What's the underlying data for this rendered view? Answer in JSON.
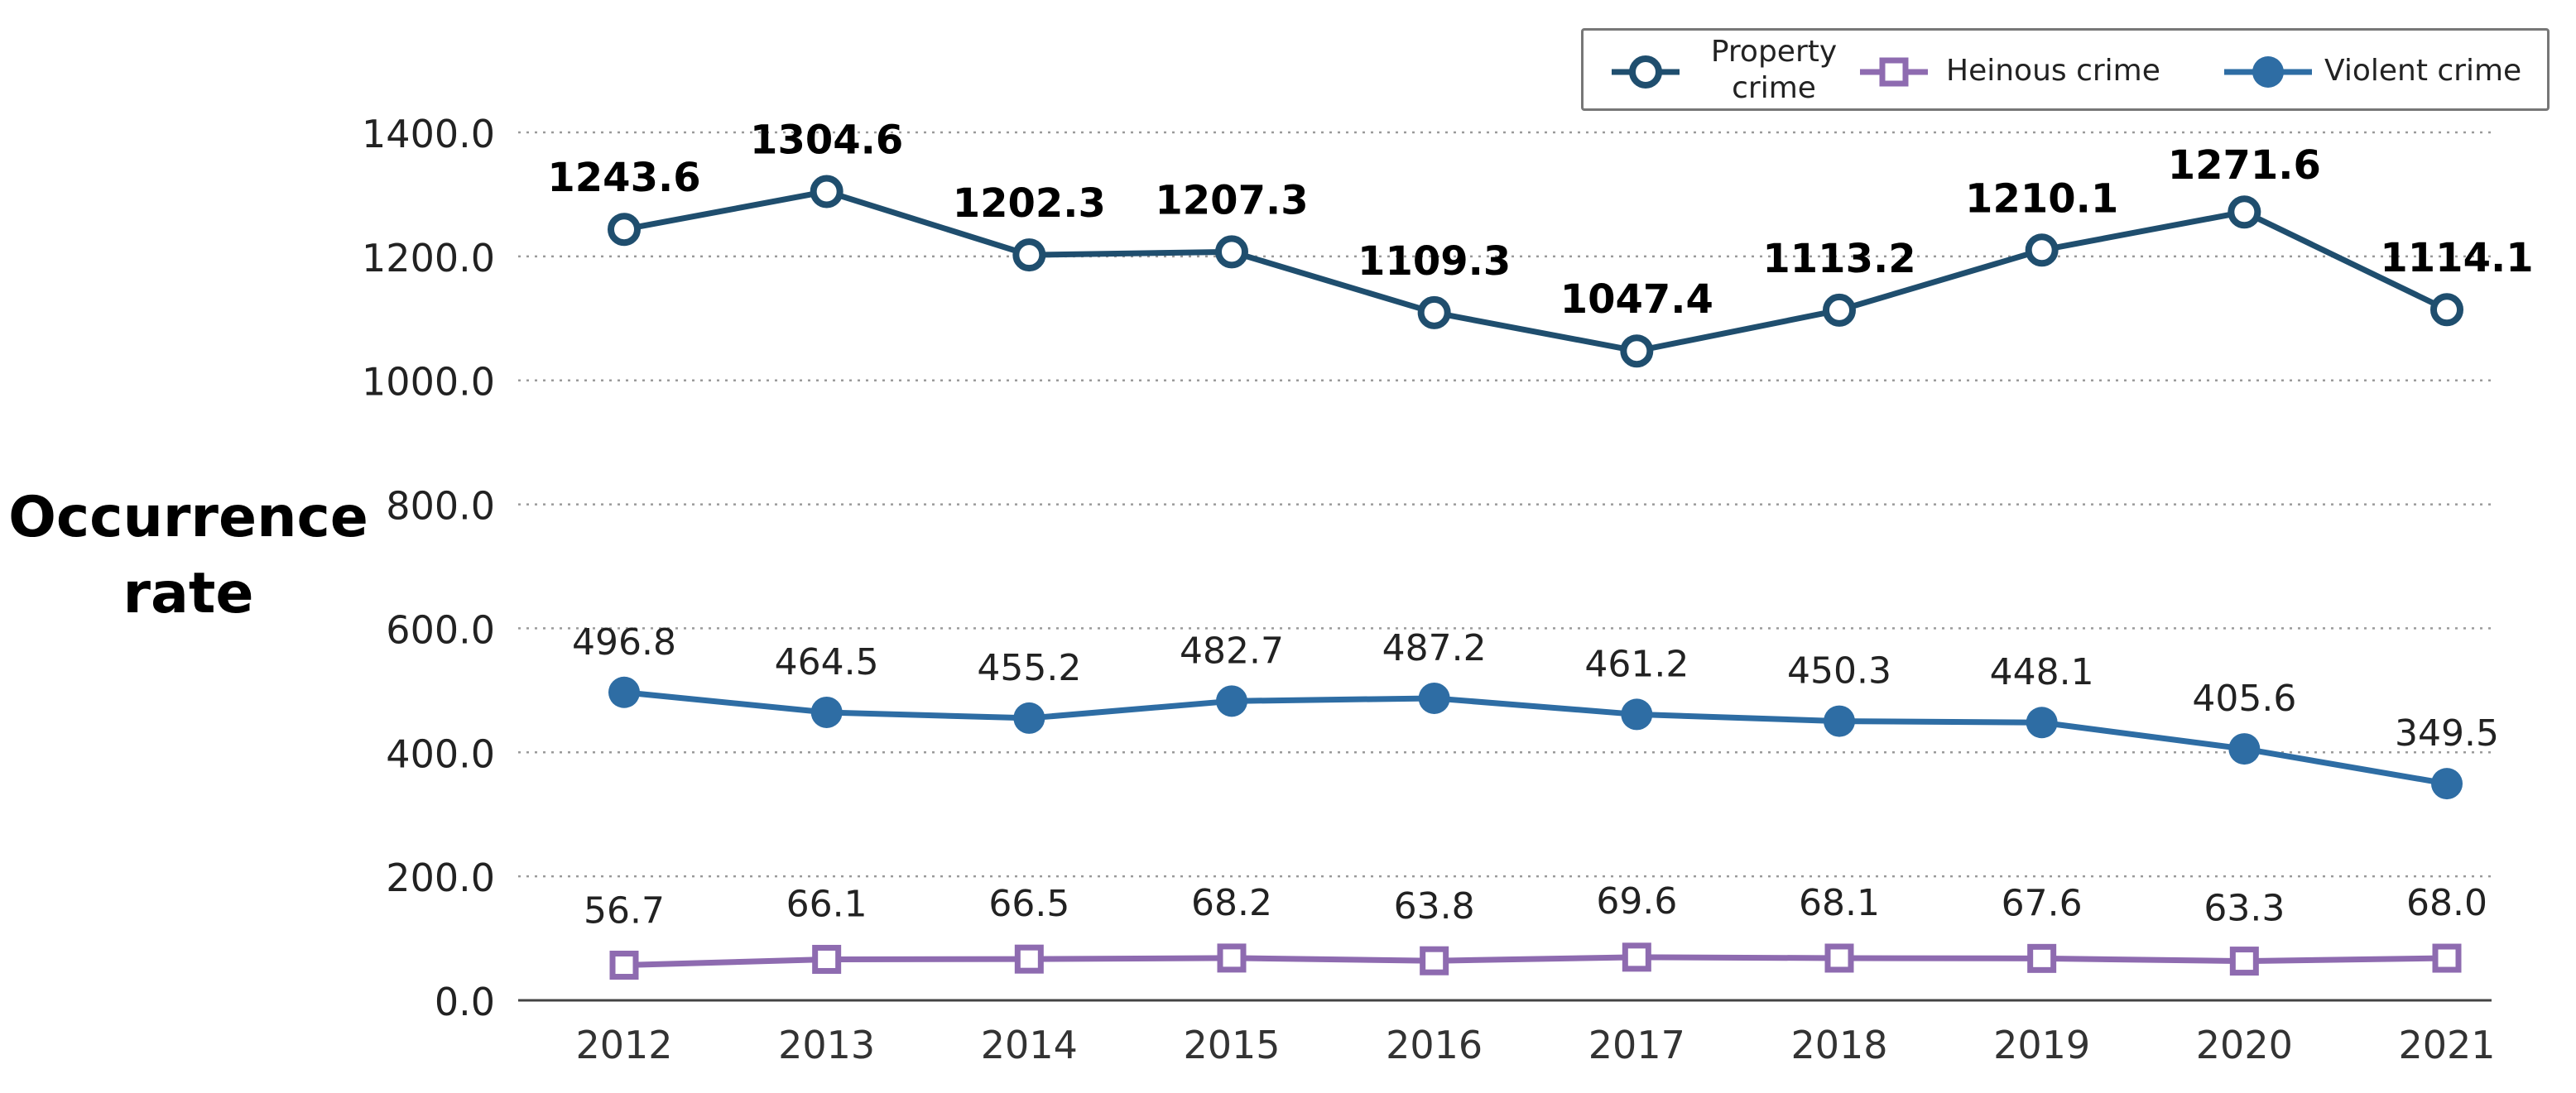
{
  "chart_data": {
    "type": "line",
    "title": "",
    "xlabel": "",
    "ylabel": "Occurrence rate",
    "ylabel_lines": [
      "Occurrence",
      "rate"
    ],
    "ylim": [
      0,
      1400
    ],
    "yticks": [
      0,
      200,
      400,
      600,
      800,
      1000,
      1200,
      1400
    ],
    "ytick_labels": [
      "0.0",
      "200.0",
      "400.0",
      "600.0",
      "800.0",
      "1000.0",
      "1200.0",
      "1400.0"
    ],
    "grid": true,
    "legend_position": "top-right",
    "categories": [
      "2012",
      "2013",
      "2014",
      "2015",
      "2016",
      "2017",
      "2018",
      "2019",
      "2020",
      "2021"
    ],
    "series": [
      {
        "name": "Property crime",
        "legend_lines": [
          "Property",
          "crime"
        ],
        "marker": "circle-open",
        "color": "#1f4e6e",
        "values": [
          1243.6,
          1304.6,
          1202.3,
          1207.3,
          1109.3,
          1047.4,
          1113.2,
          1210.1,
          1271.6,
          1114.1
        ],
        "labels": [
          "1243.6",
          "1304.6",
          "1202.3",
          "1207.3",
          "1109.3",
          "1047.4",
          "1113.2",
          "1210.1",
          "1271.6",
          "1114.1"
        ]
      },
      {
        "name": "Heinous crime",
        "marker": "square-open",
        "color": "#8e6bb0",
        "values": [
          56.7,
          66.1,
          66.5,
          68.2,
          63.8,
          69.6,
          68.1,
          67.6,
          63.3,
          68.0
        ],
        "labels": [
          "56.7",
          "66.1",
          "66.5",
          "68.2",
          "63.8",
          "69.6",
          "68.1",
          "67.6",
          "63.3",
          "68.0"
        ]
      },
      {
        "name": "Violent crime",
        "marker": "circle-filled",
        "color": "#2e6da4",
        "values": [
          496.8,
          464.5,
          455.2,
          482.7,
          487.2,
          461.2,
          450.3,
          448.1,
          405.6,
          349.5
        ],
        "labels": [
          "496.8",
          "464.5",
          "455.2",
          "482.7",
          "487.2",
          "461.2",
          "450.3",
          "448.1",
          "405.6",
          "349.5"
        ]
      }
    ]
  }
}
